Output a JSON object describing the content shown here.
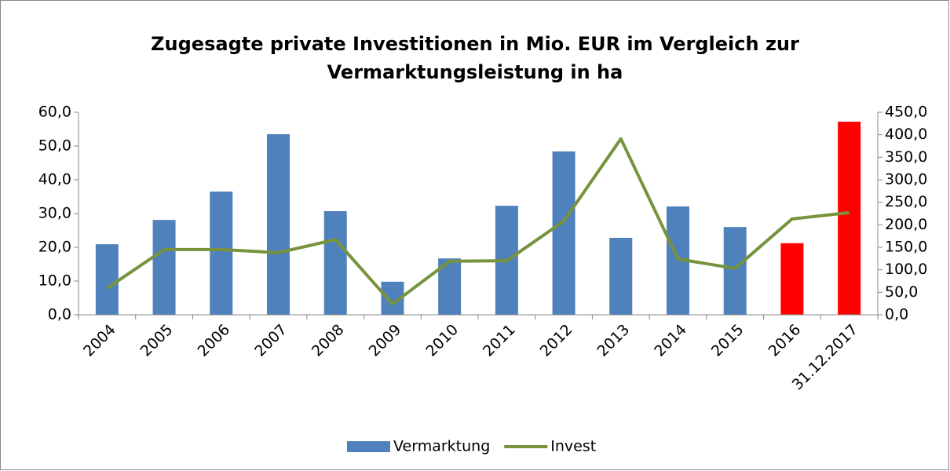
{
  "chart_data": {
    "type": "combo",
    "title": [
      "Zugesagte private Investitionen in Mio. EUR  im Vergleich zur",
      "Vermarktungsleistung in ha"
    ],
    "categories": [
      "2004",
      "2005",
      "2006",
      "2007",
      "2008",
      "2009",
      "2010",
      "2011",
      "2012",
      "2013",
      "2014",
      "2015",
      "2016",
      "31.12.2017"
    ],
    "series": [
      {
        "name": "Vermarktung",
        "type": "bar",
        "color": "#4f81bd",
        "colors": [
          "#4f81bd",
          "#4f81bd",
          "#4f81bd",
          "#4f81bd",
          "#4f81bd",
          "#4f81bd",
          "#4f81bd",
          "#4f81bd",
          "#4f81bd",
          "#4f81bd",
          "#4f81bd",
          "#4f81bd",
          "#ff0000",
          "#ff0000"
        ],
        "values": [
          20.9,
          28.1,
          36.5,
          53.5,
          30.7,
          9.8,
          16.7,
          32.3,
          48.4,
          22.8,
          32.1,
          26.0,
          21.2,
          57.2
        ]
      },
      {
        "name": "Invest",
        "type": "line",
        "axis": "y2",
        "color": "#77933c",
        "values": [
          59,
          145,
          145,
          138,
          167,
          24,
          119,
          120,
          208,
          391,
          124,
          103,
          213,
          227
        ]
      }
    ],
    "ylim": [
      0,
      60
    ],
    "yticks": [
      {
        "value": 0,
        "label": "0,0"
      },
      {
        "value": 10,
        "label": "10,0"
      },
      {
        "value": 20,
        "label": "20,0"
      },
      {
        "value": 30,
        "label": "30,0"
      },
      {
        "value": 40,
        "label": "40,0"
      },
      {
        "value": 50,
        "label": "50,0"
      },
      {
        "value": 60,
        "label": "60,0"
      }
    ],
    "y2lim": [
      0,
      450
    ],
    "y2ticks": [
      {
        "value": 0,
        "label": "0,0"
      },
      {
        "value": 50,
        "label": "50,0"
      },
      {
        "value": 100,
        "label": "100,0"
      },
      {
        "value": 150,
        "label": "150,0"
      },
      {
        "value": 200,
        "label": "200,0"
      },
      {
        "value": 250,
        "label": "250,0"
      },
      {
        "value": 300,
        "label": "300,0"
      },
      {
        "value": 350,
        "label": "350,0"
      },
      {
        "value": 400,
        "label": "400,0"
      },
      {
        "value": 450,
        "label": "450,0"
      }
    ],
    "legend": "bottom"
  }
}
